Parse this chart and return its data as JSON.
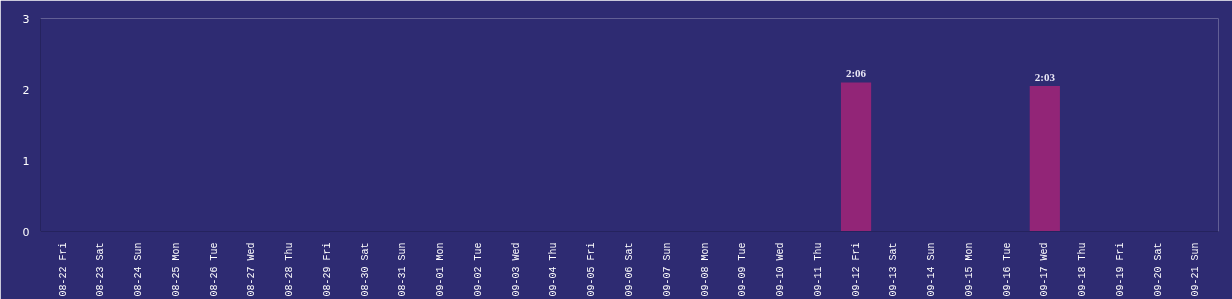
{
  "chart_data": {
    "type": "bar",
    "categories": [
      "08-22 Fri",
      "08-23 Sat",
      "08-24 Sun",
      "08-25 Mon",
      "08-26 Tue",
      "08-27 Wed",
      "08-28 Thu",
      "08-29 Fri",
      "08-30 Sat",
      "08-31 Sun",
      "09-01 Mon",
      "09-02 Tue",
      "09-03 Wed",
      "09-04 Thu",
      "09-05 Fri",
      "09-06 Sat",
      "09-07 Sun",
      "09-08 Mon",
      "09-09 Tue",
      "09-10 Wed",
      "09-11 Thu",
      "09-12 Fri",
      "09-13 Sat",
      "09-14 Sun",
      "09-15 Mon",
      "09-16 Tue",
      "09-17 Wed",
      "09-18 Thu",
      "09-19 Fri",
      "09-20 Sat",
      "09-21 Sun"
    ],
    "values": [
      0,
      0,
      0,
      0,
      0,
      0,
      0,
      0,
      0,
      0,
      0,
      0,
      0,
      0,
      0,
      0,
      0,
      0,
      0,
      0,
      0,
      2.1,
      0,
      0,
      0,
      0,
      2.05,
      0,
      0,
      0,
      0
    ],
    "value_labels": [
      null,
      null,
      null,
      null,
      null,
      null,
      null,
      null,
      null,
      null,
      null,
      null,
      null,
      null,
      null,
      null,
      null,
      null,
      null,
      null,
      null,
      "2:06",
      null,
      null,
      null,
      null,
      "2:03",
      null,
      null,
      null,
      null
    ],
    "color": "#922577",
    "ylim": [
      0,
      3
    ],
    "yticks": [
      0,
      1,
      2,
      3
    ],
    "grid": false
  }
}
